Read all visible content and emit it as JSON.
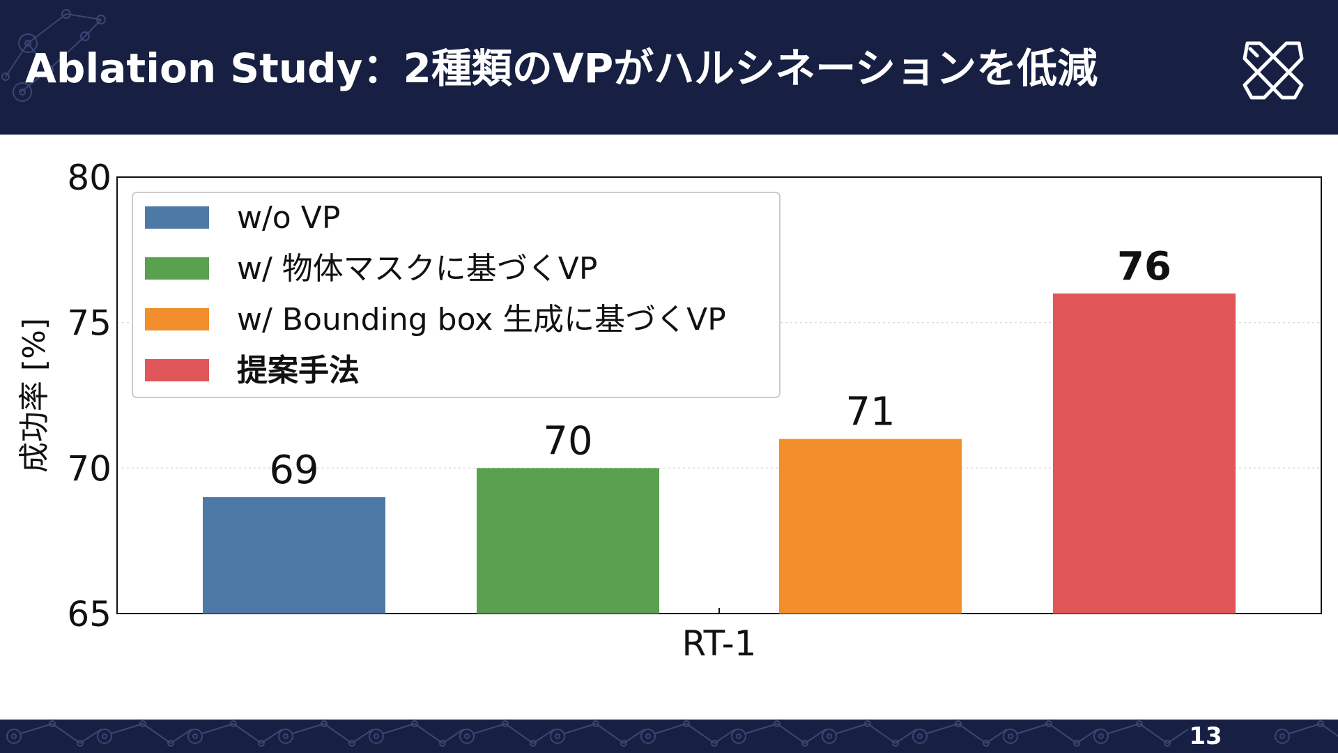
{
  "header": {
    "title": "Ablation Study：2種類のVPがハルシネーションを低減",
    "logo_icon": "crossed-tools-logo-icon"
  },
  "footer": {
    "page_number": "13"
  },
  "colors": {
    "header_bg": "#172042",
    "blue": "#4e79a7",
    "green": "#59a14f",
    "orange": "#f28e2b",
    "red": "#e15759"
  },
  "chart_data": {
    "type": "bar",
    "title": "",
    "xlabel": "",
    "ylabel": "成功率 [%]",
    "categories": [
      "RT-1"
    ],
    "ylim": [
      65,
      80
    ],
    "yticks": [
      65,
      70,
      75,
      80
    ],
    "grid": true,
    "legend_position": "top-left",
    "series": [
      {
        "name": "w/o VP",
        "values": [
          69
        ],
        "label": "69",
        "color": "#4e79a7",
        "bold": false
      },
      {
        "name": "w/ 物体マスクに基づくVP",
        "values": [
          70
        ],
        "label": "70",
        "color": "#59a14f",
        "bold": false
      },
      {
        "name": "w/ Bounding box 生成に基づくVP",
        "values": [
          71
        ],
        "label": "71",
        "color": "#f28e2b",
        "bold": false
      },
      {
        "name": "提案手法",
        "values": [
          76
        ],
        "label": "76",
        "color": "#e15759",
        "bold": true
      }
    ]
  }
}
